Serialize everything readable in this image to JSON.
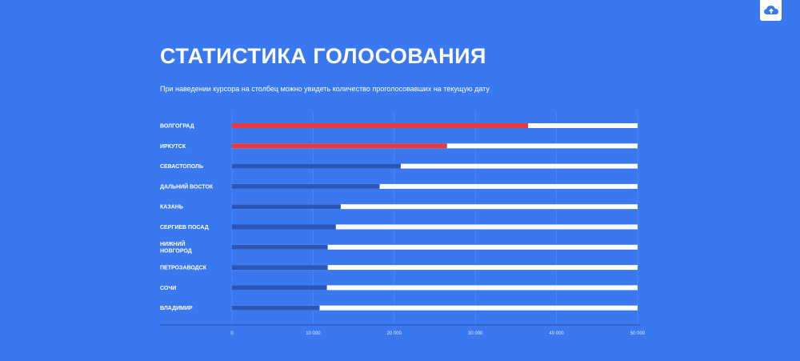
{
  "header": {
    "title": "СТАТИСТИКА ГОЛОСОВАНИЯ",
    "subtitle": "При наведении курсора на столбец можно увидеть количество проголосовавших на текущую дату"
  },
  "toolbar": {
    "cloud_icon": "cloud-upload-icon"
  },
  "colors": {
    "background": "#3a78ef",
    "bar_track": "#ffffff",
    "bar_highlight": "#e63a3f",
    "bar_default": "#2c55b8",
    "axis": "#2a4fa8"
  },
  "chart_data": {
    "type": "bar",
    "orientation": "horizontal",
    "title": "СТАТИСТИКА ГОЛОСОВАНИЯ",
    "categories": [
      [
        "ВОЛГОГРАД"
      ],
      [
        "ИРКУТСК"
      ],
      [
        "СЕВАСТОПОЛЬ"
      ],
      [
        "ДАЛЬНИЙ ВОСТОК"
      ],
      [
        "КАЗАНЬ"
      ],
      [
        "СЕРГИЕВ ПОСАД"
      ],
      [
        "НИЖНИЙ",
        "НОВГОРОД"
      ],
      [
        "ПЕТРОЗАВОДСК"
      ],
      [
        "СОЧИ"
      ],
      [
        "ВЛАДИМИР"
      ]
    ],
    "values": [
      36500,
      26500,
      20800,
      18200,
      13400,
      12800,
      11800,
      11800,
      11700,
      10800
    ],
    "highlighted": [
      true,
      true,
      false,
      false,
      false,
      false,
      false,
      false,
      false,
      false
    ],
    "xlim": [
      0,
      50000
    ],
    "xticks": [
      0,
      10000,
      20000,
      30000,
      40000,
      50000
    ],
    "xtick_labels": [
      "0",
      "10 000",
      "20 000",
      "30 000",
      "40 000",
      "50 000"
    ],
    "grid": true
  }
}
